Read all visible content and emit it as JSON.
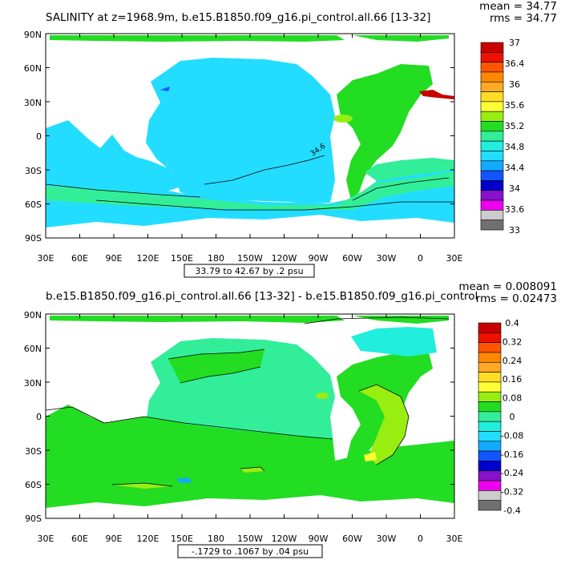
{
  "panels": [
    {
      "title": "SALINITY at z=1968.9m, b.e15.B1850.f09_g16.pi_control.all.66 [13-32]",
      "mean_label": "mean = 34.77",
      "rms_label": "rms = 34.77",
      "range_box": "33.79 to 42.67 by .2 psu",
      "contour_label": "34.6",
      "ylabels": [
        "90N",
        "60N",
        "30N",
        "0",
        "30S",
        "60S",
        "90S"
      ],
      "xlabels": [
        "30E",
        "60E",
        "90E",
        "120E",
        "150E",
        "180",
        "150W",
        "120W",
        "90W",
        "60W",
        "30W",
        "0",
        "30E"
      ],
      "colorbar": {
        "labels": [
          "37",
          "36.4",
          "36",
          "35.6",
          "35.2",
          "34.8",
          "34.4",
          "34",
          "33.6",
          "33"
        ],
        "colors": [
          "#c80000",
          "#ee1100",
          "#ff5500",
          "#ff8800",
          "#ffaa22",
          "#ffdd22",
          "#ffff33",
          "#99ee11",
          "#22dd22",
          "#33ee99",
          "#22eedd",
          "#22ddff",
          "#11aaff",
          "#1155ff",
          "#0000cc",
          "#8811cc",
          "#ee00ee",
          "#cccccc",
          "#707070"
        ]
      }
    },
    {
      "title": "b.e15.B1850.f09_g16.pi_control.all.66 [13-32] - b.e15.B1850.f09_g16.pi_control",
      "mean_label": "mean = 0.008091",
      "rms_label": "rms = 0.02473",
      "range_box": "-.1729 to .1067 by .04 psu",
      "ylabels": [
        "90N",
        "60N",
        "30N",
        "0",
        "30S",
        "60S",
        "90S"
      ],
      "xlabels": [
        "30E",
        "60E",
        "90E",
        "120E",
        "150E",
        "180",
        "150W",
        "120W",
        "90W",
        "60W",
        "30W",
        "0",
        "30E"
      ],
      "colorbar": {
        "labels": [
          "0.4",
          "0.32",
          "0.24",
          "0.16",
          "0.08",
          "0",
          "-0.08",
          "-0.16",
          "-0.24",
          "-0.32",
          "-0.4"
        ],
        "colors": [
          "#c80000",
          "#ee1100",
          "#ff5500",
          "#ff8800",
          "#ffaa22",
          "#ffdd22",
          "#ffff33",
          "#99ee11",
          "#22dd22",
          "#33ee99",
          "#22eedd",
          "#22ddff",
          "#11aaff",
          "#1155ff",
          "#0000cc",
          "#8811cc",
          "#ee00ee",
          "#cccccc",
          "#707070"
        ]
      }
    }
  ]
}
